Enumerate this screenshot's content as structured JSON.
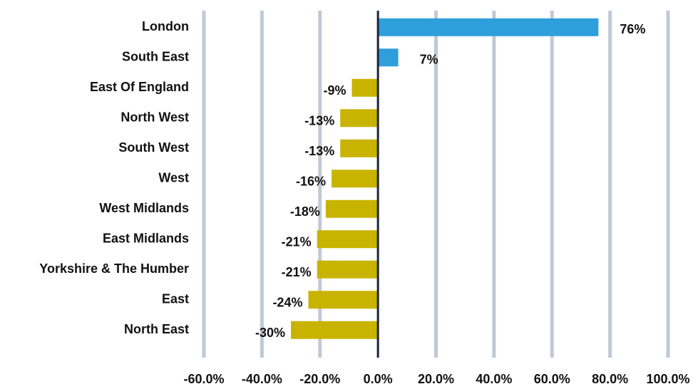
{
  "chart_data": {
    "type": "bar",
    "orientation": "horizontal",
    "categories": [
      "London",
      "South East",
      "East Of England",
      "North West",
      "South West",
      "West",
      "West Midlands",
      "East Midlands",
      "Yorkshire & The Humber",
      "East",
      "North East"
    ],
    "values": [
      76,
      7,
      -9,
      -13,
      -13,
      -16,
      -18,
      -21,
      -21,
      -24,
      -30
    ],
    "value_labels": [
      "76%",
      "7%",
      "-9%",
      "-13%",
      "-13%",
      "-16%",
      "-18%",
      "-21%",
      "-21%",
      "-24%",
      "-30%"
    ],
    "positive_color": "#2e9fdb",
    "negative_color": "#c8b400",
    "xlim": [
      -60,
      100
    ],
    "xticks": [
      {
        "value": -60,
        "label": "-60.0%"
      },
      {
        "value": -40,
        "label": "-40.0%"
      },
      {
        "value": -20,
        "label": "-20.0%"
      },
      {
        "value": 0,
        "label": "0.0%"
      },
      {
        "value": 20,
        "label": "20.0%"
      },
      {
        "value": 40,
        "label": "40.0%"
      },
      {
        "value": 60,
        "label": "60.0%"
      },
      {
        "value": 80,
        "label": "80.0%"
      },
      {
        "value": 100,
        "label": "100.0%"
      }
    ],
    "grid": true
  }
}
